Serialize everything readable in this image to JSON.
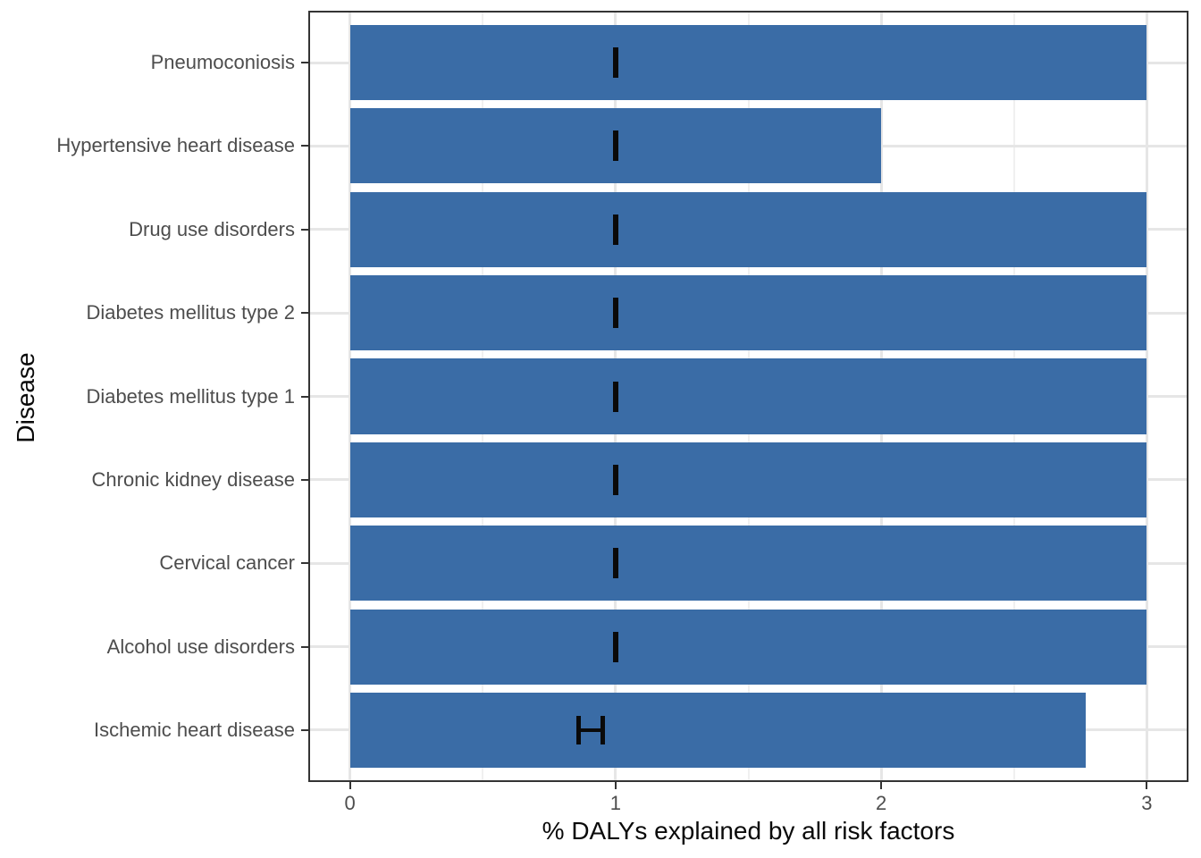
{
  "figure": {
    "background": "#ffffff"
  },
  "chart_data": {
    "type": "bar",
    "orientation": "horizontal",
    "title": "",
    "xlabel": "% DALYs explained by all risk factors",
    "ylabel": "Disease",
    "x_ticks": [
      "0",
      "1",
      "2",
      "3"
    ],
    "x_tick_values": [
      0,
      1,
      2,
      3
    ],
    "x_minor_gridline_values": [
      0.5,
      1.5,
      2.5
    ],
    "xlim_shown": [
      -0.15,
      3.15
    ],
    "grid": "vertical major+minor, horizontal major at category centers",
    "legend": "none",
    "categories": [
      "Pneumoconiosis",
      "Hypertensive heart disease",
      "Drug use disorders",
      "Diabetes mellitus type 2",
      "Diabetes mellitus type 1",
      "Chronic kidney disease",
      "Cervical cancer",
      "Alcohol use disorders",
      "Ischemic heart disease"
    ],
    "series": [
      {
        "name": "% DALYs explained by all risk factors",
        "values": [
          3.0,
          2.0,
          3.0,
          3.0,
          3.0,
          3.0,
          3.0,
          3.0,
          2.77
        ]
      }
    ],
    "error_bars": [
      {
        "category": "Pneumoconiosis",
        "xmin": 1.0,
        "xmax": 1.0
      },
      {
        "category": "Hypertensive heart disease",
        "xmin": 1.0,
        "xmax": 1.0
      },
      {
        "category": "Drug use disorders",
        "xmin": 1.0,
        "xmax": 1.0
      },
      {
        "category": "Diabetes mellitus type 2",
        "xmin": 1.0,
        "xmax": 1.0
      },
      {
        "category": "Diabetes mellitus type 1",
        "xmin": 1.0,
        "xmax": 1.0
      },
      {
        "category": "Chronic kidney disease",
        "xmin": 1.0,
        "xmax": 1.0
      },
      {
        "category": "Cervical cancer",
        "xmin": 1.0,
        "xmax": 1.0
      },
      {
        "category": "Alcohol use disorders",
        "xmin": 1.0,
        "xmax": 1.0
      },
      {
        "category": "Ischemic heart disease",
        "xmin": 0.86,
        "xmax": 0.95
      }
    ],
    "colors": {
      "bar": "#3a6ca6",
      "error_bar": "#0a0a0a",
      "grid_major": "#e6e6e6",
      "grid_minor": "#f0f0f0",
      "panel_border": "#343434",
      "tick_mark": "#343434",
      "axis_text": "#4d4d4d",
      "axis_title": "#0a0a0a",
      "background": "#ffffff"
    }
  }
}
